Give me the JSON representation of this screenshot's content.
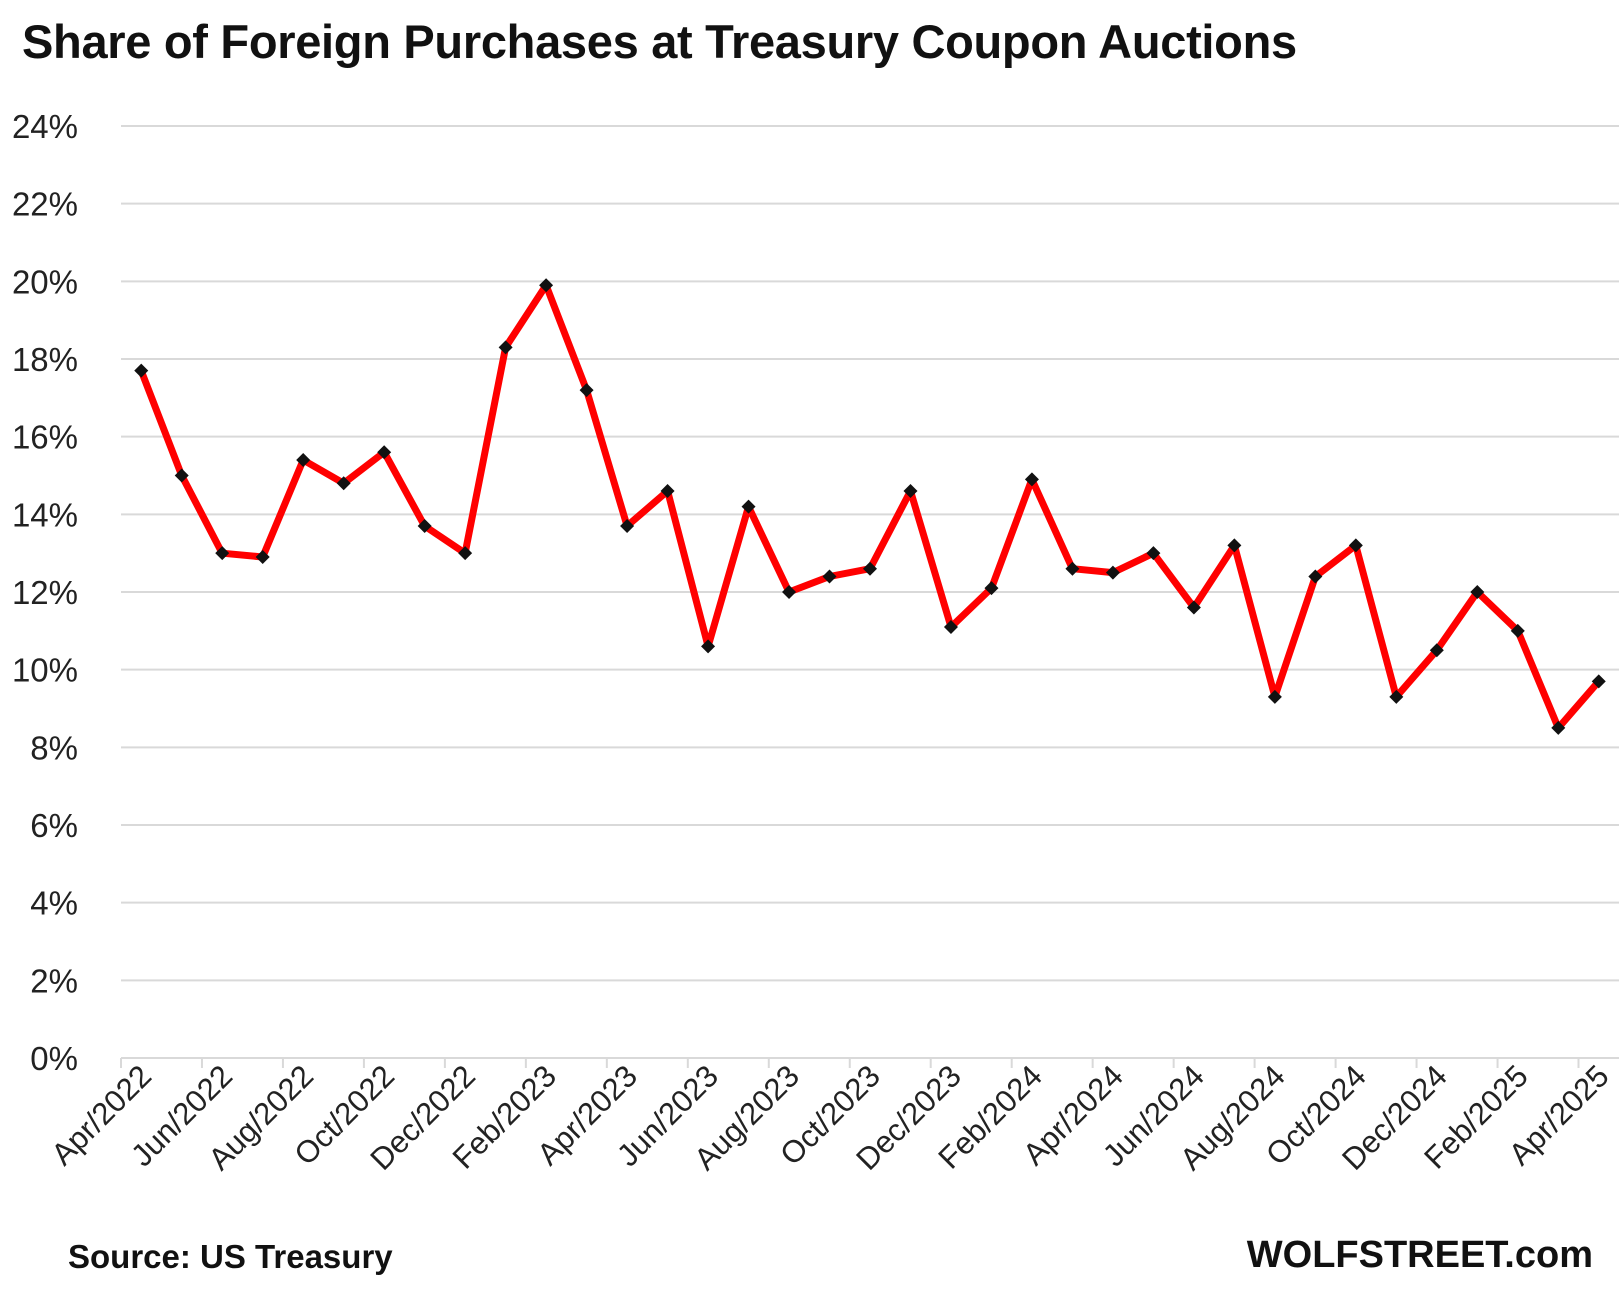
{
  "chart_data": {
    "type": "line",
    "title": "Share of Foreign Purchases at Treasury Coupon Auctions",
    "xlabel": "",
    "ylabel": "",
    "ylim": [
      0,
      24
    ],
    "yticks": [
      "0%",
      "2%",
      "4%",
      "6%",
      "8%",
      "10%",
      "12%",
      "14%",
      "16%",
      "18%",
      "20%",
      "22%",
      "24%"
    ],
    "xtick_labels": [
      "Apr/2022",
      "Jun/2022",
      "Aug/2022",
      "Oct/2022",
      "Dec/2022",
      "Feb/2023",
      "Apr/2023",
      "Jun/2023",
      "Aug/2023",
      "Oct/2023",
      "Dec/2023",
      "Feb/2024",
      "Apr/2024",
      "Jun/2024",
      "Aug/2024",
      "Oct/2024",
      "Dec/2024",
      "Feb/2025",
      "Apr/2025"
    ],
    "grid": true,
    "legend": "none",
    "series": [
      {
        "color": "#ff0000",
        "marker_color": "#111111",
        "x": [
          "2022-04",
          "2022-05",
          "2022-06",
          "2022-07",
          "2022-08",
          "2022-09",
          "2022-10",
          "2022-11",
          "2022-12",
          "2023-01",
          "2023-02",
          "2023-03",
          "2023-04",
          "2023-05",
          "2023-06",
          "2023-07",
          "2023-08",
          "2023-09",
          "2023-10",
          "2023-11",
          "2023-12",
          "2024-01",
          "2024-02",
          "2024-03",
          "2024-04",
          "2024-05",
          "2024-06",
          "2024-07",
          "2024-08",
          "2024-09",
          "2024-10",
          "2024-11",
          "2024-12",
          "2025-01",
          "2025-02",
          "2025-03",
          "2025-04"
        ],
        "values": [
          17.7,
          15.0,
          13.0,
          12.9,
          15.4,
          14.8,
          15.6,
          13.7,
          13.0,
          18.3,
          19.9,
          17.2,
          13.7,
          14.6,
          10.6,
          14.2,
          12.0,
          12.4,
          12.6,
          14.6,
          11.1,
          12.1,
          14.9,
          12.6,
          12.5,
          13.0,
          11.6,
          13.2,
          9.3,
          12.4,
          13.2,
          9.3,
          10.5,
          12.0,
          11.0,
          8.5,
          9.7
        ]
      }
    ]
  },
  "footer": {
    "source": "Source: US Treasury",
    "brand": "WOLFSTREET.com"
  }
}
